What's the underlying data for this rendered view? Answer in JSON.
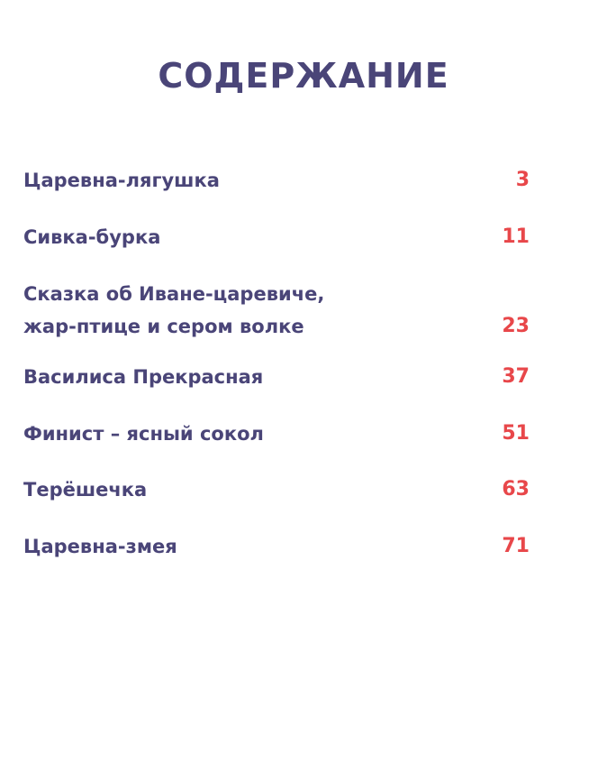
{
  "title": "СОДЕРЖАНИЕ",
  "entries": [
    {
      "lines": [
        "Царевна-лягушка"
      ],
      "page": "3"
    },
    {
      "lines": [
        "Сивка-бурка"
      ],
      "page": "11"
    },
    {
      "lines": [
        "Сказка об Иване-царевиче,",
        "жар-птице и сером волке"
      ],
      "page": "23"
    },
    {
      "lines": [
        "Василиса Прекрасная"
      ],
      "page": "37"
    },
    {
      "lines": [
        "Финист – ясный сокол"
      ],
      "page": "51"
    },
    {
      "lines": [
        "Терёшечка"
      ],
      "page": "63"
    },
    {
      "lines": [
        "Царевна-змея"
      ],
      "page": "71"
    }
  ]
}
